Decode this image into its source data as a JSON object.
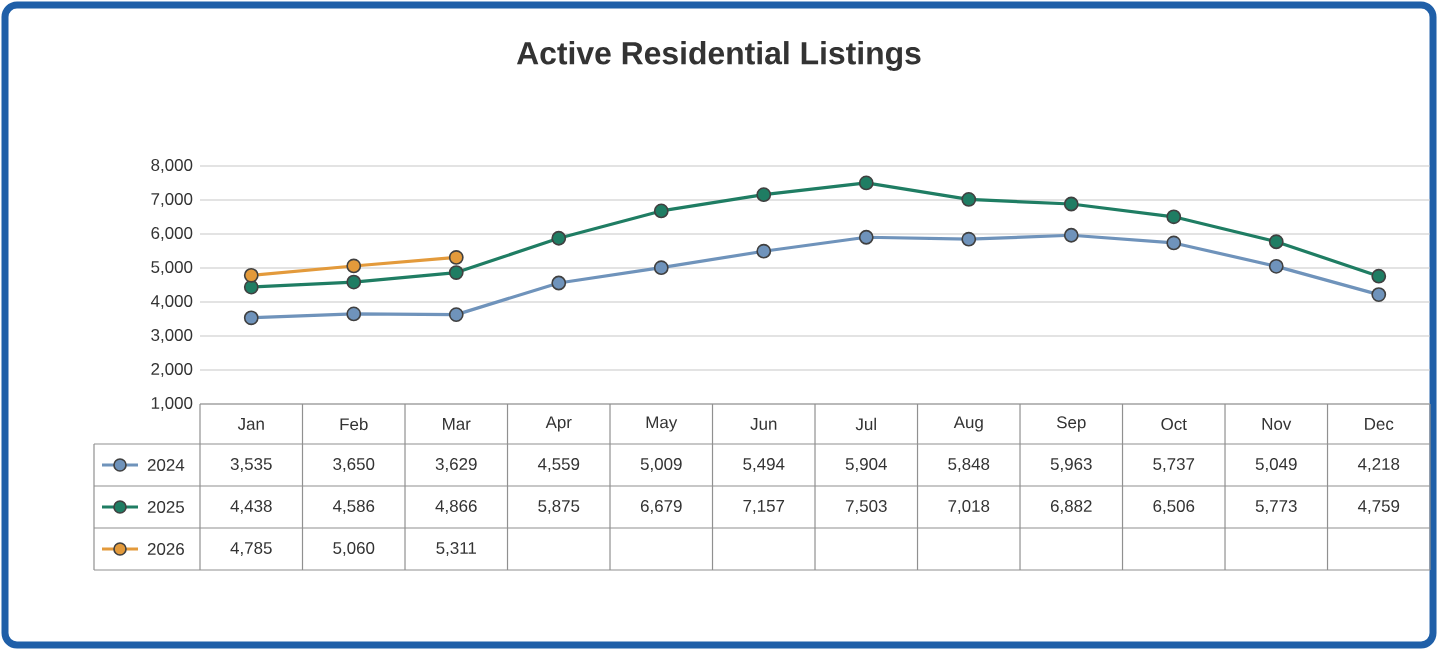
{
  "chart_data": {
    "type": "line",
    "title": "Active Residential Listings",
    "categories": [
      "Jan",
      "Feb",
      "Mar",
      "Apr",
      "May",
      "Jun",
      "Jul",
      "Aug",
      "Sep",
      "Oct",
      "Nov",
      "Dec"
    ],
    "series": [
      {
        "name": "2024",
        "color": "#6f93bb",
        "values": [
          3535,
          3650,
          3629,
          4559,
          5009,
          5494,
          5904,
          5848,
          5963,
          5737,
          5049,
          4218
        ],
        "value_labels": [
          "3,535",
          "3,650",
          "3,629",
          "4,559",
          "5,009",
          "5,494",
          "5,904",
          "5,848",
          "5,963",
          "5,737",
          "5,049",
          "4,218"
        ]
      },
      {
        "name": "2025",
        "color": "#1f7d63",
        "values": [
          4438,
          4586,
          4866,
          5875,
          6679,
          7157,
          7503,
          7018,
          6882,
          6506,
          5773,
          4759
        ],
        "value_labels": [
          "4,438",
          "4,586",
          "4,866",
          "5,875",
          "6,679",
          "7,157",
          "7,503",
          "7,018",
          "6,882",
          "6,506",
          "5,773",
          "4,759"
        ]
      },
      {
        "name": "2026",
        "color": "#e39a3b",
        "values": [
          4785,
          5060,
          5311,
          null,
          null,
          null,
          null,
          null,
          null,
          null,
          null,
          null
        ],
        "value_labels": [
          "4,785",
          "5,060",
          "5,311",
          null,
          null,
          null,
          null,
          null,
          null,
          null,
          null,
          null
        ]
      }
    ],
    "ylim": [
      1000,
      8000
    ],
    "yticks": [
      {
        "value": 1000,
        "label": "1,000"
      },
      {
        "value": 2000,
        "label": "2,000"
      },
      {
        "value": 3000,
        "label": "3,000"
      },
      {
        "value": 4000,
        "label": "4,000"
      },
      {
        "value": 5000,
        "label": "5,000"
      },
      {
        "value": 6000,
        "label": "6,000"
      },
      {
        "value": 7000,
        "label": "7,000"
      },
      {
        "value": 8000,
        "label": "8,000"
      }
    ],
    "grid": "y",
    "legend": "bottom",
    "marker": "circle",
    "line_style": "solid"
  }
}
